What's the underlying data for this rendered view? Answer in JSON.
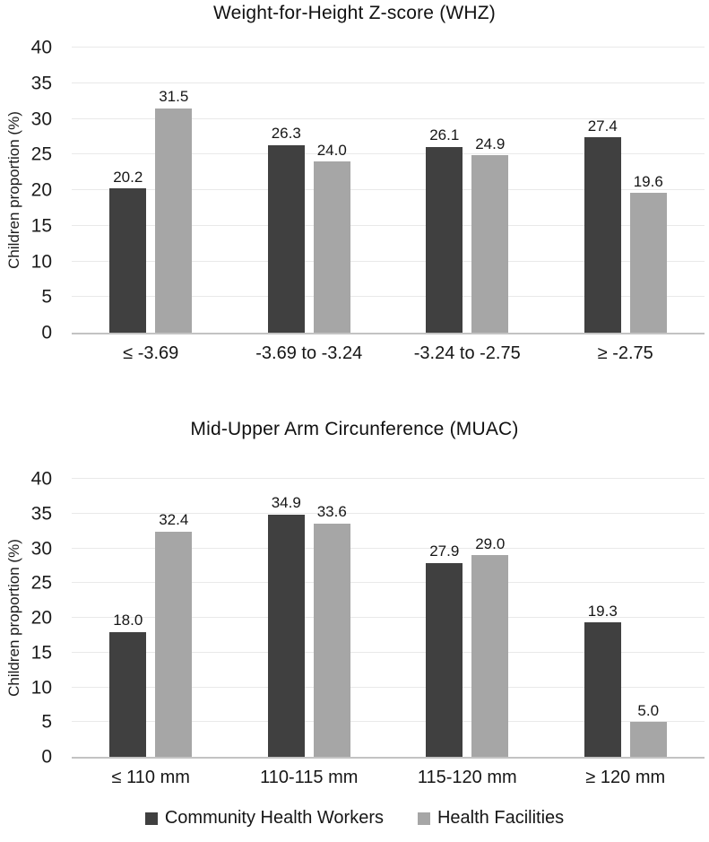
{
  "figure": {
    "background": "#ffffff"
  },
  "colors": {
    "series_dark": "#404040",
    "series_gray": "#a6a6a6",
    "gridline": "#e9e9e9",
    "axis_line": "#c3c3c3",
    "text": "#1c1c1c"
  },
  "legend": {
    "items": [
      {
        "key": "chw",
        "label": "Community Health Workers",
        "color": "#404040"
      },
      {
        "key": "hf",
        "label": "Health Facilities",
        "color": "#a6a6a6"
      }
    ]
  },
  "chart_data": [
    {
      "type": "bar",
      "title": "Weight-for-Height Z-score (WHZ)",
      "xlabel": "",
      "ylabel": "Children proportion (%)",
      "ylim": [
        0,
        40
      ],
      "ytick_step": 5,
      "grid": true,
      "legend_position": "bottom-shared",
      "categories": [
        "≤ -3.69",
        "-3.69 to -3.24",
        "-3.24 to -2.75",
        "≥ -2.75"
      ],
      "series": [
        {
          "name": "Community Health Workers",
          "key": "chw",
          "color": "#404040",
          "values": [
            20.2,
            26.3,
            26.1,
            27.4
          ]
        },
        {
          "name": "Health Facilities",
          "key": "hf",
          "color": "#a6a6a6",
          "values": [
            31.5,
            24.0,
            24.9,
            19.6
          ]
        }
      ]
    },
    {
      "type": "bar",
      "title": "Mid-Upper Arm Circunference (MUAC)",
      "xlabel": "",
      "ylabel": "Children proportion (%)",
      "ylim": [
        0,
        40
      ],
      "ytick_step": 5,
      "grid": true,
      "legend_position": "bottom-shared",
      "categories": [
        "≤ 110 mm",
        "110-115 mm",
        "115-120 mm",
        "≥ 120 mm"
      ],
      "series": [
        {
          "name": "Community Health Workers",
          "key": "chw",
          "color": "#404040",
          "values": [
            18.0,
            34.9,
            27.9,
            19.3
          ]
        },
        {
          "name": "Health Facilities",
          "key": "hf",
          "color": "#a6a6a6",
          "values": [
            32.4,
            33.6,
            29.0,
            5.0
          ]
        }
      ]
    }
  ]
}
